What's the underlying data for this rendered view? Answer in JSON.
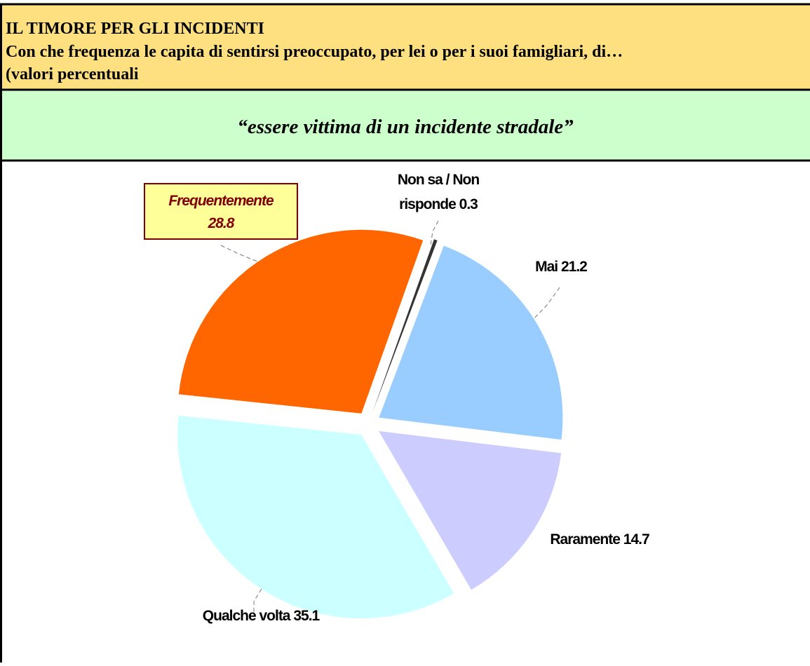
{
  "chart_data": {
    "type": "pie",
    "title": "IL TIMORE PER GLI INCIDENTI",
    "subtitle": [
      "Con che frequenza le capita di sentirsi preoccupato, per lei o per i suoi famigliari, di…",
      "(valori percentuali"
    ],
    "question": "“essere vittima di un incidente stradale”",
    "categories": [
      "Frequentemente",
      "Non sa / Non risponde",
      "Mai",
      "Raramente",
      "Qualche volta"
    ],
    "values": [
      28.8,
      0.3,
      21.2,
      14.7,
      35.1
    ],
    "colors": [
      "#ff6600",
      "#333333",
      "#99ccff",
      "#ccccff",
      "#ccffff"
    ]
  }
}
